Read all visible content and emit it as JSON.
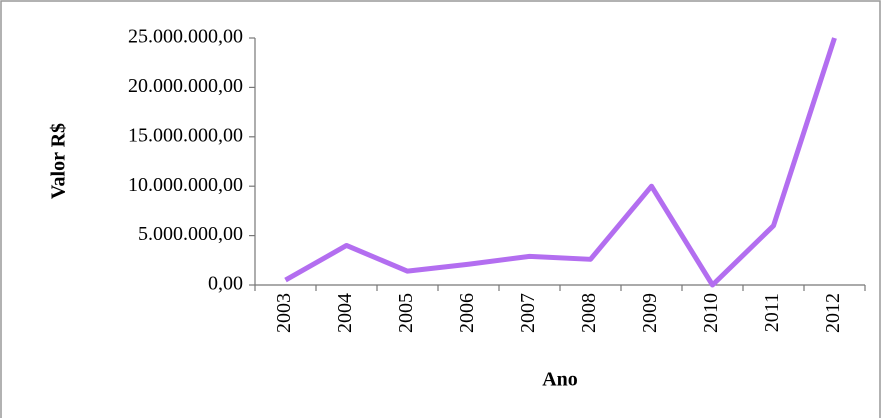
{
  "chart_data": {
    "type": "line",
    "x_label": "Ano",
    "y_label": "Valor R$",
    "categories": [
      "2003",
      "2004",
      "2005",
      "2006",
      "2007",
      "2008",
      "2009",
      "2010",
      "2011",
      "2012"
    ],
    "series": [
      {
        "name": "Valor R$",
        "color": "#b36ef0",
        "values": [
          500000,
          4000000,
          1400000,
          2100000,
          2900000,
          2600000,
          10000000,
          0,
          6000000,
          25000000
        ]
      }
    ],
    "ylim": [
      0,
      25000000
    ],
    "yticks": [
      {
        "value": 0,
        "label": "0,00"
      },
      {
        "value": 5000000,
        "label": "5.000.000,00"
      },
      {
        "value": 10000000,
        "label": "10.000.000,00"
      },
      {
        "value": 15000000,
        "label": "15.000.000,00"
      },
      {
        "value": 20000000,
        "label": "20.000.000,00"
      },
      {
        "value": 25000000,
        "label": "25.000.000,00"
      }
    ],
    "grid": false
  }
}
